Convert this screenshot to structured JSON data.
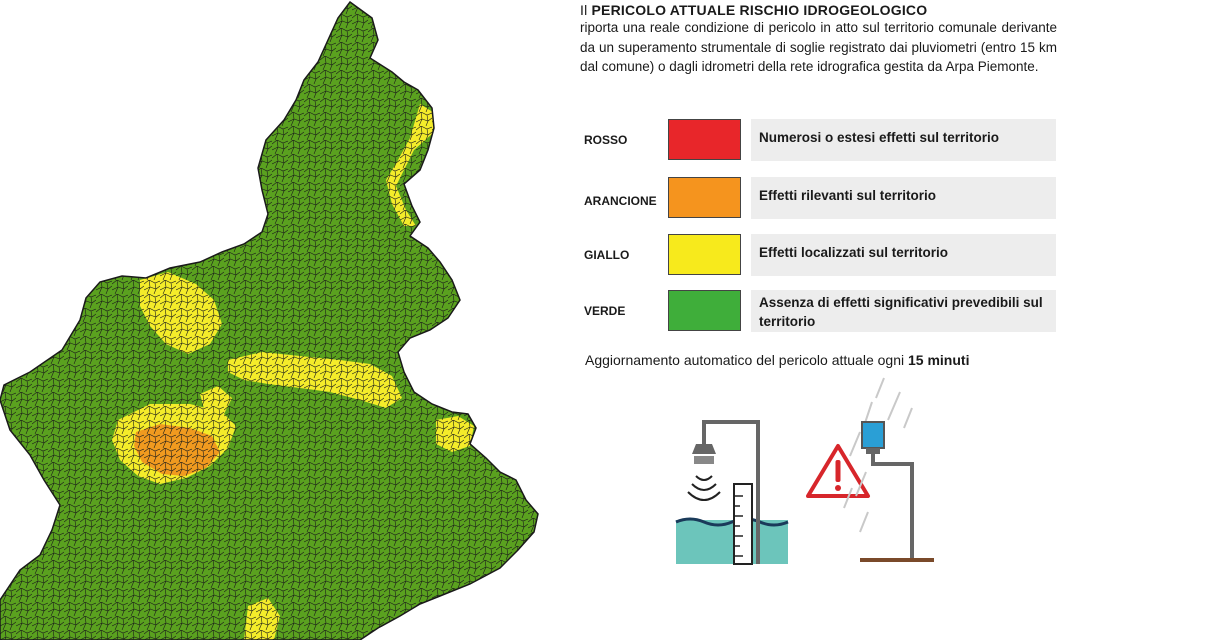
{
  "header": {
    "title_lead": "Il",
    "title_bold": "PERICOLO ATTUALE RISCHIO IDROGEOLOGICO",
    "description": "riporta una reale condizione di pericolo in atto sul territorio comunale derivante da un superamento strumentale di soglie registrato dai pluviometri (entro 15 km dal comune) o dagli idrometri della rete idrografica gestita da Arpa Piemonte."
  },
  "legend": [
    {
      "label": "ROSSO",
      "color": "#e8262a",
      "text": "Numerosi o estesi effetti sul territorio"
    },
    {
      "label": "ARANCIONE",
      "color": "#f5941e",
      "text": "Effetti rilevanti sul territorio"
    },
    {
      "label": "GIALLO",
      "color": "#f7ea1c",
      "text": "Effetti localizzati sul territorio"
    },
    {
      "label": "VERDE",
      "color": "#3fae3a",
      "text": "Assenza di effetti significativi prevedibili sul territorio"
    }
  ],
  "update": {
    "text": "Aggiornamento automatico  del pericolo attuale ogni",
    "interval": "15 minuti"
  },
  "map": {
    "region_colors": {
      "green": "#5aa11f",
      "yellow": "#f4ec2a",
      "orange": "#f09a1f",
      "border": "#1a1a1a"
    }
  },
  "illustration": {
    "icons": [
      "hydrometer-icon",
      "warning-icon",
      "rain-gauge-icon"
    ]
  }
}
